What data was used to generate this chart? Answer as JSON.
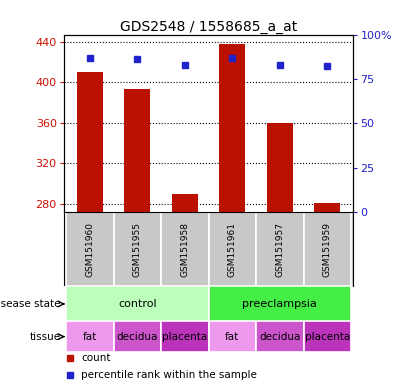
{
  "title": "GDS2548 / 1558685_a_at",
  "samples": [
    "GSM151960",
    "GSM151955",
    "GSM151958",
    "GSM151961",
    "GSM151957",
    "GSM151959"
  ],
  "counts": [
    410,
    393,
    290,
    438,
    360,
    281
  ],
  "percentiles": [
    87,
    86,
    83,
    87,
    83,
    82
  ],
  "ylim_left": [
    272,
    447
  ],
  "ylim_right": [
    0,
    100
  ],
  "yticks_left": [
    280,
    320,
    360,
    400,
    440
  ],
  "yticks_right": [
    0,
    25,
    50,
    75,
    100
  ],
  "ytick_labels_right": [
    "0",
    "25",
    "50",
    "75",
    "100%"
  ],
  "bar_color": "#bb1100",
  "dot_color": "#2222cc",
  "disease_state": [
    {
      "label": "control",
      "span": [
        0,
        3
      ],
      "color": "#bbffbb"
    },
    {
      "label": "preeclampsia",
      "span": [
        3,
        6
      ],
      "color": "#44ee44"
    }
  ],
  "tissue": [
    {
      "label": "fat",
      "span": [
        0,
        1
      ],
      "color": "#ee99ee"
    },
    {
      "label": "decidua",
      "span": [
        1,
        2
      ],
      "color": "#cc55cc"
    },
    {
      "label": "placenta",
      "span": [
        2,
        3
      ],
      "color": "#bb33bb"
    },
    {
      "label": "fat",
      "span": [
        3,
        4
      ],
      "color": "#ee99ee"
    },
    {
      "label": "decidua",
      "span": [
        4,
        5
      ],
      "color": "#cc55cc"
    },
    {
      "label": "placenta",
      "span": [
        5,
        6
      ],
      "color": "#bb33bb"
    }
  ],
  "background_color": "#ffffff",
  "title_fontsize": 10,
  "axis_color_left": "#cc1100",
  "axis_color_right": "#2222cc",
  "bar_width": 0.55,
  "xlim": [
    -0.55,
    5.55
  ]
}
